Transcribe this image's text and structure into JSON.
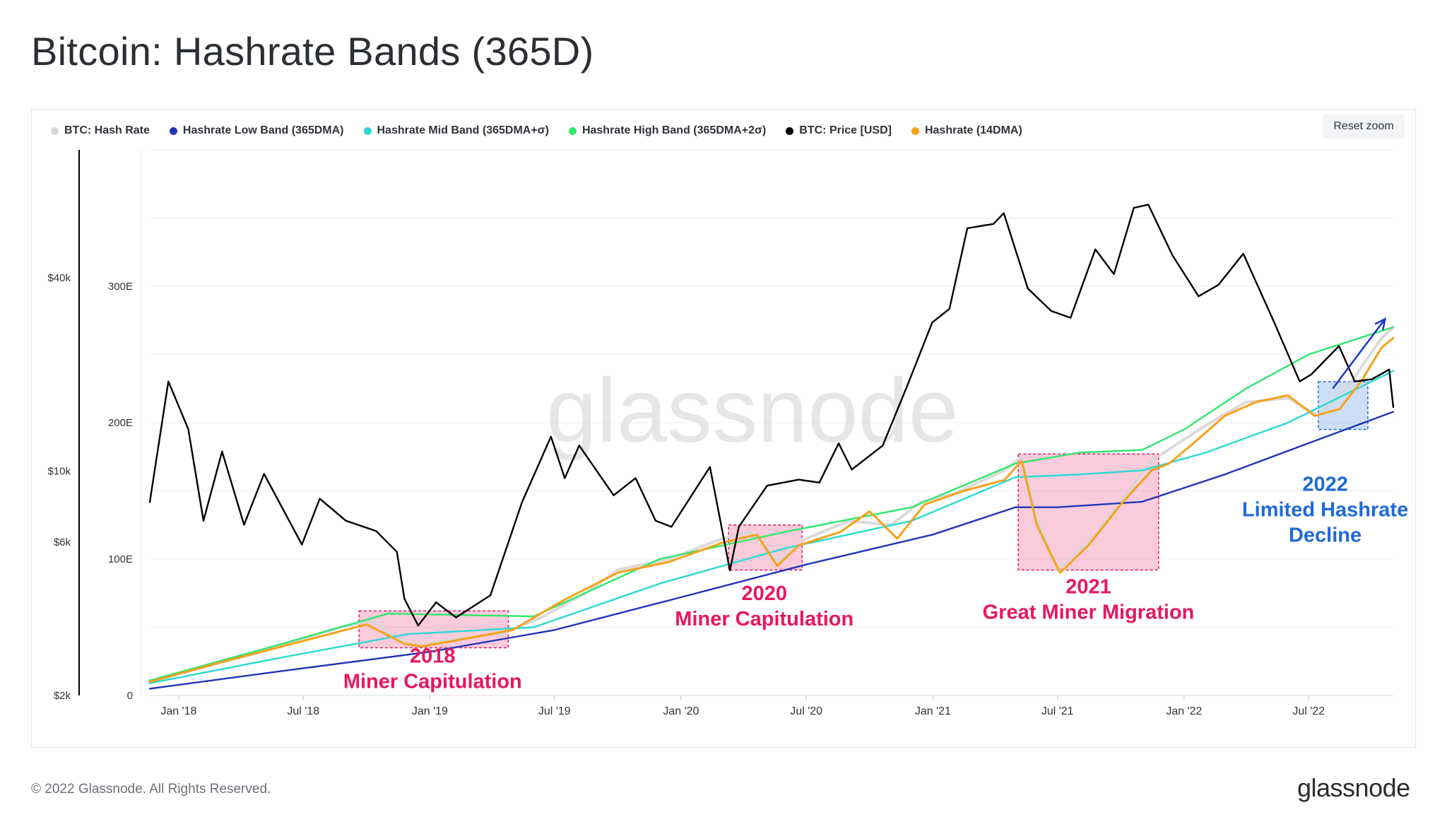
{
  "title": "Bitcoin: Hashrate Bands (365D)",
  "reset_zoom_label": "Reset zoom",
  "watermark": "glassnode",
  "footer": {
    "copyright": "© 2022 Glassnode. All Rights Reserved.",
    "logo": "glassnode"
  },
  "legend": [
    {
      "label": "BTC: Hash Rate",
      "color": "#d6d6d6"
    },
    {
      "label": "Hashrate Low Band (365DMA)",
      "color": "#1f35b8"
    },
    {
      "label": "Hashrate Mid Band (365DMA+σ)",
      "color": "#2ad9d1"
    },
    {
      "label": "Hashrate High Band (365DMA+2σ)",
      "color": "#2ee86a"
    },
    {
      "label": "BTC: Price [USD]",
      "color": "#000000"
    },
    {
      "label": "Hashrate (14DMA)",
      "color": "#f7a21b"
    }
  ],
  "chart_data": {
    "type": "line",
    "x_ticks": [
      "Jan '18",
      "Jul '18",
      "Jan '19",
      "Jul '19",
      "Jan '20",
      "Jul '20",
      "Jan '21",
      "Jul '21",
      "Jan '22",
      "Jul '22"
    ],
    "xlim": [
      "2017-11-20",
      "2022-11-01"
    ],
    "price_axis": {
      "scale": "log",
      "ticks": [
        "$2k",
        "$6k",
        "$10k",
        "$40k"
      ],
      "ylim": [
        2000,
        100000
      ]
    },
    "hashrate_axis": {
      "ticks": [
        "0",
        "100E",
        "200E",
        "300E"
      ],
      "ylim": [
        0,
        400
      ]
    },
    "series": [
      {
        "name": "BTC: Price [USD]",
        "axis": "price",
        "color": "#000000",
        "points": [
          [
            "2017-11-20",
            8000
          ],
          [
            "2017-12-17",
            19000
          ],
          [
            "2018-01-15",
            13500
          ],
          [
            "2018-02-06",
            7000
          ],
          [
            "2018-03-05",
            11500
          ],
          [
            "2018-04-06",
            6800
          ],
          [
            "2018-05-05",
            9800
          ],
          [
            "2018-06-29",
            5900
          ],
          [
            "2018-07-25",
            8200
          ],
          [
            "2018-09-01",
            7000
          ],
          [
            "2018-10-15",
            6500
          ],
          [
            "2018-11-14",
            5600
          ],
          [
            "2018-11-25",
            4000
          ],
          [
            "2018-12-15",
            3300
          ],
          [
            "2019-01-10",
            3900
          ],
          [
            "2019-02-08",
            3500
          ],
          [
            "2019-03-30",
            4100
          ],
          [
            "2019-05-15",
            8000
          ],
          [
            "2019-06-26",
            12800
          ],
          [
            "2019-07-16",
            9500
          ],
          [
            "2019-08-06",
            12000
          ],
          [
            "2019-09-25",
            8400
          ],
          [
            "2019-10-27",
            9500
          ],
          [
            "2019-11-25",
            7000
          ],
          [
            "2019-12-18",
            6700
          ],
          [
            "2020-02-12",
            10300
          ],
          [
            "2020-03-12",
            4900
          ],
          [
            "2020-03-25",
            6700
          ],
          [
            "2020-05-05",
            9000
          ],
          [
            "2020-06-20",
            9400
          ],
          [
            "2020-07-20",
            9200
          ],
          [
            "2020-08-17",
            12200
          ],
          [
            "2020-09-05",
            10100
          ],
          [
            "2020-10-20",
            12000
          ],
          [
            "2020-11-25",
            18500
          ],
          [
            "2020-12-31",
            29000
          ],
          [
            "2021-01-25",
            32000
          ],
          [
            "2021-02-20",
            57000
          ],
          [
            "2021-03-30",
            58800
          ],
          [
            "2021-04-14",
            63500
          ],
          [
            "2021-05-19",
            37000
          ],
          [
            "2021-06-22",
            31500
          ],
          [
            "2021-07-20",
            30000
          ],
          [
            "2021-08-25",
            49000
          ],
          [
            "2021-09-21",
            41000
          ],
          [
            "2021-10-20",
            66000
          ],
          [
            "2021-11-10",
            67500
          ],
          [
            "2021-12-15",
            47000
          ],
          [
            "2022-01-22",
            35000
          ],
          [
            "2022-02-20",
            38000
          ],
          [
            "2022-03-28",
            47500
          ],
          [
            "2022-05-12",
            29000
          ],
          [
            "2022-06-18",
            19000
          ],
          [
            "2022-07-05",
            20000
          ],
          [
            "2022-08-14",
            24500
          ],
          [
            "2022-09-06",
            19000
          ],
          [
            "2022-10-01",
            19300
          ],
          [
            "2022-10-26",
            20700
          ],
          [
            "2022-11-01",
            15800
          ]
        ]
      },
      {
        "name": "BTC: Hash Rate",
        "axis": "hashrate",
        "color": "#d6d6d6",
        "points": [
          [
            "2017-11-20",
            10
          ],
          [
            "2018-02-15",
            22
          ],
          [
            "2018-05-01",
            32
          ],
          [
            "2018-07-01",
            42
          ],
          [
            "2018-08-25",
            50
          ],
          [
            "2018-10-10",
            55
          ],
          [
            "2018-11-20",
            40
          ],
          [
            "2018-12-15",
            37
          ],
          [
            "2019-02-15",
            42
          ],
          [
            "2019-04-15",
            45
          ],
          [
            "2019-06-15",
            58
          ],
          [
            "2019-08-15",
            75
          ],
          [
            "2019-10-01",
            92
          ],
          [
            "2019-12-15",
            100
          ],
          [
            "2020-03-01",
            115
          ],
          [
            "2020-04-10",
            120
          ],
          [
            "2020-05-20",
            98
          ],
          [
            "2020-07-01",
            115
          ],
          [
            "2020-09-01",
            128
          ],
          [
            "2020-11-01",
            125
          ],
          [
            "2020-12-15",
            142
          ],
          [
            "2021-02-01",
            148
          ],
          [
            "2021-04-15",
            165
          ],
          [
            "2021-05-10",
            175
          ],
          [
            "2021-06-01",
            130
          ],
          [
            "2021-07-01",
            92
          ],
          [
            "2021-08-15",
            112
          ],
          [
            "2021-10-01",
            142
          ],
          [
            "2021-11-15",
            172
          ],
          [
            "2021-12-15",
            182
          ],
          [
            "2022-02-01",
            198
          ],
          [
            "2022-04-01",
            215
          ],
          [
            "2022-06-01",
            218
          ],
          [
            "2022-07-15",
            205
          ],
          [
            "2022-09-01",
            230
          ],
          [
            "2022-10-15",
            262
          ],
          [
            "2022-11-01",
            270
          ]
        ]
      },
      {
        "name": "Hashrate Low Band (365DMA)",
        "axis": "hashrate",
        "color": "#1f35b8",
        "points": [
          [
            "2017-11-20",
            5
          ],
          [
            "2018-06-01",
            18
          ],
          [
            "2019-01-01",
            32
          ],
          [
            "2019-07-01",
            48
          ],
          [
            "2020-01-01",
            72
          ],
          [
            "2020-07-01",
            96
          ],
          [
            "2021-01-01",
            118
          ],
          [
            "2021-05-01",
            138
          ],
          [
            "2021-07-01",
            138
          ],
          [
            "2021-11-01",
            142
          ],
          [
            "2022-03-01",
            162
          ],
          [
            "2022-07-01",
            185
          ],
          [
            "2022-11-01",
            208
          ]
        ]
      },
      {
        "name": "Hashrate Mid Band (365DMA+σ)",
        "axis": "hashrate",
        "color": "#2ad9d1",
        "points": [
          [
            "2017-11-20",
            9
          ],
          [
            "2018-06-01",
            28
          ],
          [
            "2018-12-01",
            45
          ],
          [
            "2019-06-01",
            50
          ],
          [
            "2019-12-01",
            82
          ],
          [
            "2020-06-01",
            108
          ],
          [
            "2020-12-01",
            128
          ],
          [
            "2021-05-01",
            160
          ],
          [
            "2021-08-01",
            162
          ],
          [
            "2021-11-01",
            165
          ],
          [
            "2022-02-01",
            178
          ],
          [
            "2022-06-01",
            200
          ],
          [
            "2022-11-01",
            238
          ]
        ]
      },
      {
        "name": "Hashrate High Band (365DMA+2σ)",
        "axis": "hashrate",
        "color": "#2ee86a",
        "points": [
          [
            "2017-11-20",
            11
          ],
          [
            "2018-06-01",
            38
          ],
          [
            "2018-11-01",
            60
          ],
          [
            "2019-06-01",
            58
          ],
          [
            "2019-12-01",
            100
          ],
          [
            "2020-06-01",
            120
          ],
          [
            "2020-12-01",
            138
          ],
          [
            "2021-05-01",
            170
          ],
          [
            "2021-08-01",
            178
          ],
          [
            "2021-11-01",
            180
          ],
          [
            "2022-01-01",
            195
          ],
          [
            "2022-04-01",
            225
          ],
          [
            "2022-07-01",
            250
          ],
          [
            "2022-11-01",
            270
          ]
        ]
      },
      {
        "name": "Hashrate (14DMA)",
        "axis": "hashrate",
        "color": "#f7a21b",
        "points": [
          [
            "2017-11-20",
            10
          ],
          [
            "2018-03-01",
            24
          ],
          [
            "2018-07-01",
            40
          ],
          [
            "2018-10-01",
            52
          ],
          [
            "2018-11-25",
            38
          ],
          [
            "2018-12-20",
            36
          ],
          [
            "2019-02-15",
            41
          ],
          [
            "2019-05-01",
            48
          ],
          [
            "2019-07-15",
            70
          ],
          [
            "2019-10-01",
            90
          ],
          [
            "2019-12-15",
            98
          ],
          [
            "2020-03-01",
            112
          ],
          [
            "2020-04-20",
            118
          ],
          [
            "2020-05-20",
            95
          ],
          [
            "2020-06-20",
            110
          ],
          [
            "2020-08-20",
            120
          ],
          [
            "2020-10-01",
            135
          ],
          [
            "2020-11-10",
            115
          ],
          [
            "2020-12-20",
            140
          ],
          [
            "2021-02-15",
            150
          ],
          [
            "2021-04-15",
            158
          ],
          [
            "2021-05-10",
            172
          ],
          [
            "2021-06-01",
            125
          ],
          [
            "2021-06-20",
            105
          ],
          [
            "2021-07-05",
            90
          ],
          [
            "2021-08-15",
            110
          ],
          [
            "2021-10-01",
            140
          ],
          [
            "2021-11-15",
            165
          ],
          [
            "2021-12-10",
            170
          ],
          [
            "2022-01-15",
            185
          ],
          [
            "2022-03-01",
            205
          ],
          [
            "2022-04-15",
            215
          ],
          [
            "2022-06-01",
            220
          ],
          [
            "2022-07-10",
            205
          ],
          [
            "2022-08-15",
            210
          ],
          [
            "2022-09-15",
            230
          ],
          [
            "2022-10-15",
            255
          ],
          [
            "2022-11-01",
            262
          ]
        ]
      }
    ],
    "annotations": [
      {
        "lines": [
          "2018",
          "Miner Capitulation"
        ],
        "color": "#e8175d",
        "box": [
          "2018-09-20",
          "2019-04-25",
          35,
          62
        ],
        "label_at": [
          "2019-01-05",
          24
        ]
      },
      {
        "lines": [
          "2020",
          "Miner Capitulation"
        ],
        "color": "#e8175d",
        "box": [
          "2020-03-10",
          "2020-06-25",
          92,
          125
        ],
        "label_at": [
          "2020-05-01",
          70
        ]
      },
      {
        "lines": [
          "2021",
          "Great Miner Migration"
        ],
        "color": "#e8175d",
        "box": [
          "2021-05-05",
          "2021-11-25",
          92,
          177
        ],
        "label_at": [
          "2021-08-15",
          75
        ]
      },
      {
        "lines": [
          "2022",
          "Limited Hashrate",
          "Decline"
        ],
        "color": "#1e6ad8",
        "box": [
          "2022-07-15",
          "2022-09-25",
          195,
          230
        ],
        "label_at": [
          "2022-07-25",
          150
        ],
        "arrow": [
          [
            "2022-08-05",
            225
          ],
          [
            "2022-10-20",
            276
          ]
        ]
      }
    ]
  }
}
